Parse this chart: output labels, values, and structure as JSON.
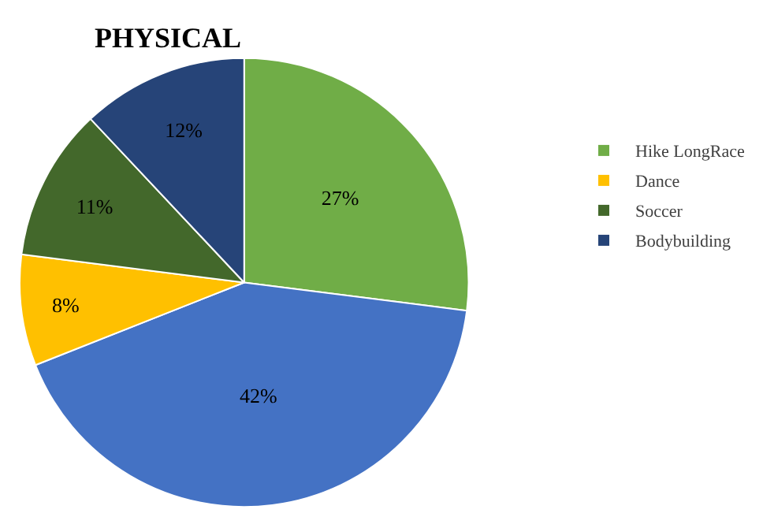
{
  "chart_data": {
    "type": "pie",
    "title": "PHYSICAL",
    "categories": [
      "Hike LongRace",
      null,
      "Dance",
      "Soccer",
      "Bodybuilding"
    ],
    "values": [
      27,
      42,
      8,
      11,
      12
    ],
    "colors": [
      "#70ad47",
      "#4472c4",
      "#ffc000",
      "#43682b",
      "#264478"
    ],
    "value_labels": [
      "27%",
      "42%",
      "8%",
      "11%",
      "12%"
    ],
    "legend": "right"
  }
}
